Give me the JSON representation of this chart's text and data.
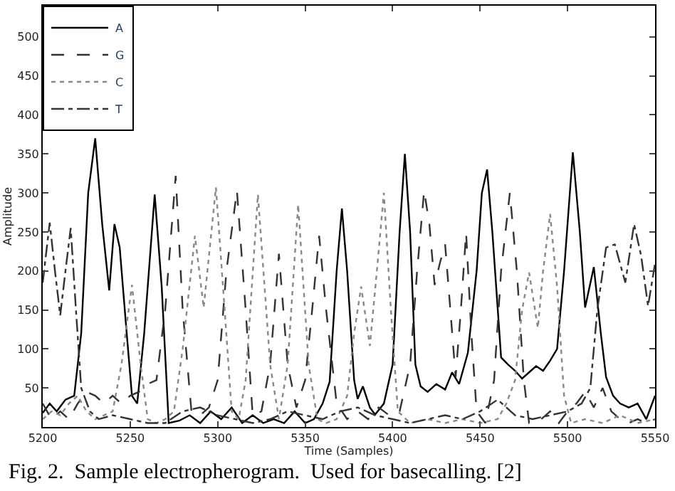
{
  "chart_data": {
    "type": "line",
    "xlabel": "Time (Samples)",
    "ylabel": "Amplitude",
    "xlim": [
      5200,
      5550
    ],
    "xticks": [
      5200,
      5250,
      5300,
      5350,
      5400,
      5450,
      5500,
      5550
    ],
    "ylim": [
      0,
      540
    ],
    "yticks": [
      50,
      100,
      150,
      200,
      250,
      300,
      350,
      400,
      450,
      500
    ],
    "legend": "top left",
    "marker": "none",
    "annotations": [
      "Fig. 2.  Sample electropherogram.  Used for basecalling. [2]"
    ],
    "series": [
      {
        "name": "A",
        "color": "#000000",
        "line_style": "solid",
        "x": [
          5200,
          5204,
          5208,
          5213,
          5218,
          5222,
          5226,
          5230,
          5234,
          5238,
          5241,
          5244,
          5248,
          5251,
          5254,
          5258,
          5264,
          5268,
          5272,
          5278,
          5284,
          5290,
          5296,
          5302,
          5308,
          5314,
          5320,
          5326,
          5332,
          5338,
          5344,
          5350,
          5355,
          5360,
          5364,
          5368,
          5371,
          5374,
          5378,
          5380,
          5383,
          5387,
          5390,
          5395,
          5400,
          5404,
          5407,
          5410,
          5413,
          5416,
          5420,
          5425,
          5430,
          5434,
          5438,
          5443,
          5448,
          5451,
          5454,
          5457,
          5462,
          5466,
          5470,
          5474,
          5478,
          5482,
          5486,
          5490,
          5494,
          5498,
          5503,
          5507,
          5510,
          5515,
          5519,
          5522,
          5526,
          5530,
          5535,
          5540,
          5545,
          5550
        ],
        "values": [
          18,
          30,
          20,
          35,
          40,
          120,
          300,
          370,
          260,
          175,
          260,
          230,
          120,
          40,
          30,
          120,
          298,
          180,
          5,
          8,
          15,
          5,
          20,
          10,
          25,
          5,
          15,
          5,
          10,
          5,
          20,
          5,
          10,
          30,
          58,
          200,
          280,
          200,
          60,
          36,
          52,
          25,
          16,
          30,
          80,
          250,
          350,
          250,
          80,
          52,
          45,
          55,
          48,
          70,
          55,
          95,
          200,
          300,
          330,
          250,
          89,
          80,
          72,
          62,
          70,
          78,
          72,
          85,
          100,
          200,
          352,
          250,
          153,
          205,
          120,
          64,
          40,
          30,
          25,
          30,
          10,
          40
        ]
      },
      {
        "name": "G",
        "color": "#333333",
        "line_style": "dashed",
        "x": [
          5200,
          5205,
          5210,
          5215,
          5220,
          5225,
          5230,
          5235,
          5240,
          5245,
          5250,
          5255,
          5260,
          5265,
          5270,
          5276,
          5280,
          5285,
          5290,
          5295,
          5300,
          5305,
          5311,
          5316,
          5320,
          5325,
          5330,
          5335,
          5340,
          5345,
          5350,
          5354,
          5358,
          5362,
          5368,
          5374,
          5380,
          5386,
          5392,
          5398,
          5404,
          5410,
          5414,
          5418,
          5421,
          5424,
          5427,
          5430,
          5433,
          5436,
          5439,
          5442,
          5445,
          5448,
          5453,
          5458,
          5462,
          5467,
          5471,
          5475,
          5478,
          5485,
          5490,
          5495,
          5500,
          5505,
          5510,
          5515,
          5520,
          5525,
          5530,
          5535,
          5540,
          5545,
          5550
        ],
        "values": [
          30,
          10,
          20,
          10,
          30,
          45,
          40,
          30,
          40,
          30,
          40,
          45,
          55,
          60,
          150,
          322,
          150,
          20,
          15,
          25,
          60,
          200,
          303,
          150,
          15,
          20,
          80,
          222,
          80,
          25,
          60,
          150,
          245,
          150,
          30,
          10,
          20,
          10,
          25,
          15,
          20,
          80,
          200,
          303,
          260,
          182,
          210,
          234,
          150,
          64,
          150,
          249,
          120,
          20,
          5,
          60,
          200,
          300,
          200,
          60,
          5,
          10,
          20,
          5,
          20,
          30,
          45,
          25,
          50,
          20,
          10,
          5,
          10,
          5,
          10
        ]
      },
      {
        "name": "C",
        "color": "#888888",
        "line_style": "dotted",
        "x": [
          5200,
          5205,
          5210,
          5215,
          5220,
          5225,
          5230,
          5235,
          5240,
          5245,
          5251,
          5256,
          5260,
          5265,
          5270,
          5275,
          5280,
          5287,
          5292,
          5299,
          5304,
          5308,
          5312,
          5316,
          5323,
          5330,
          5335,
          5340,
          5346,
          5352,
          5357,
          5362,
          5368,
          5374,
          5378,
          5382,
          5387,
          5391,
          5395,
          5399,
          5403,
          5410,
          5420,
          5430,
          5440,
          5450,
          5460,
          5465,
          5470,
          5474,
          5478,
          5483,
          5486,
          5490,
          5494,
          5498,
          5502,
          5510,
          5520,
          5530,
          5540,
          5550
        ],
        "values": [
          10,
          20,
          15,
          30,
          40,
          20,
          10,
          15,
          20,
          80,
          182,
          80,
          10,
          5,
          10,
          20,
          100,
          245,
          153,
          307,
          150,
          20,
          10,
          60,
          298,
          80,
          10,
          80,
          285,
          80,
          10,
          5,
          10,
          40,
          120,
          180,
          104,
          200,
          300,
          150,
          20,
          5,
          10,
          5,
          10,
          5,
          10,
          30,
          60,
          150,
          198,
          127,
          200,
          273,
          180,
          40,
          5,
          10,
          5,
          15,
          5,
          10
        ]
      },
      {
        "name": "T",
        "color": "#333333",
        "line_style": "dashdot",
        "x": [
          5200,
          5204,
          5207,
          5210,
          5213,
          5216,
          5219,
          5222,
          5227,
          5232,
          5240,
          5250,
          5260,
          5270,
          5280,
          5290,
          5300,
          5310,
          5320,
          5330,
          5340,
          5350,
          5360,
          5370,
          5380,
          5390,
          5400,
          5410,
          5420,
          5430,
          5440,
          5450,
          5460,
          5470,
          5480,
          5490,
          5500,
          5508,
          5513,
          5517,
          5522,
          5527,
          5533,
          5538,
          5542,
          5546,
          5550
        ],
        "values": [
          185,
          262,
          200,
          143,
          200,
          255,
          150,
          50,
          20,
          10,
          15,
          10,
          5,
          5,
          20,
          25,
          15,
          10,
          5,
          10,
          20,
          15,
          10,
          20,
          25,
          15,
          10,
          5,
          10,
          15,
          10,
          20,
          35,
          15,
          10,
          15,
          20,
          30,
          50,
          150,
          230,
          234,
          185,
          260,
          220,
          155,
          210
        ]
      }
    ]
  }
}
